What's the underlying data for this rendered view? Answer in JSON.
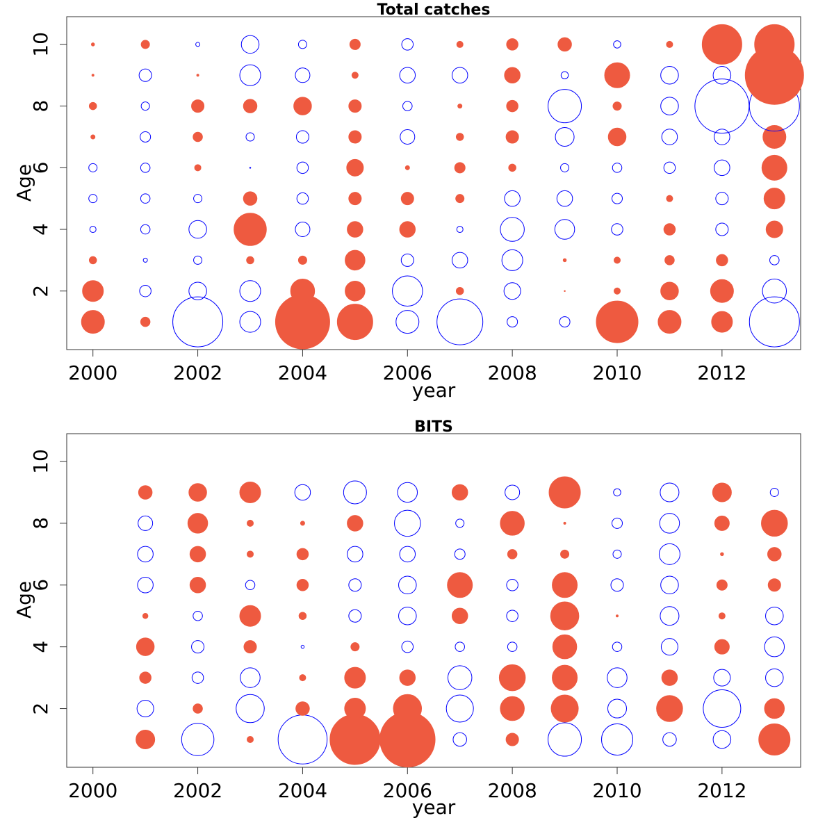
{
  "chart_data": [
    {
      "type": "scatter",
      "subtype": "bubble-residuals",
      "title": "Total catches",
      "xlabel": "year",
      "ylabel": "Age",
      "xlim": [
        1999.5,
        2013.5
      ],
      "ylim": [
        0.1,
        10.9
      ],
      "xticks": [
        2000,
        2002,
        2004,
        2006,
        2008,
        2010,
        2012
      ],
      "yticks": [
        2,
        4,
        6,
        8,
        10
      ],
      "positive_color": "#EE5A40",
      "negative_color": "#0000FF",
      "years": [
        2000,
        2001,
        2002,
        2003,
        2004,
        2005,
        2006,
        2007,
        2008,
        2009,
        2010,
        2011,
        2012,
        2013
      ],
      "ages": [
        1,
        2,
        3,
        4,
        5,
        6,
        7,
        8,
        9,
        10
      ],
      "residuals": [
        [
          1.1,
          1.0,
          0.35,
          -0.3,
          -0.4,
          -0.4,
          0.2,
          0.35,
          0.1,
          0.15
        ],
        [
          0.45,
          -0.55,
          -0.2,
          -0.45,
          -0.45,
          -0.45,
          -0.5,
          -0.4,
          -0.6,
          0.4
        ],
        [
          -2.4,
          -0.85,
          -0.4,
          -0.85,
          -0.4,
          0.3,
          0.45,
          0.6,
          0.1,
          -0.2
        ],
        [
          -1.0,
          -1.0,
          0.35,
          1.55,
          0.65,
          -0.05,
          -0.4,
          0.65,
          -1.0,
          -0.85
        ],
        [
          2.6,
          1.15,
          0.4,
          -0.7,
          -0.55,
          -0.55,
          -0.6,
          0.85,
          -0.7,
          -0.4
        ],
        [
          1.7,
          0.95,
          0.95,
          0.75,
          0.6,
          0.8,
          0.6,
          0.6,
          0.3,
          0.5
        ],
        [
          -1.1,
          -1.45,
          -0.6,
          0.75,
          0.6,
          0.2,
          -0.7,
          -0.45,
          -0.75,
          -0.55
        ],
        [
          -2.2,
          0.35,
          -0.75,
          -0.3,
          0.4,
          0.5,
          0.35,
          0.2,
          -0.75,
          0.3
        ],
        [
          -0.5,
          -0.8,
          -1.0,
          -1.15,
          -0.75,
          0.35,
          0.6,
          0.55,
          0.75,
          0.55
        ],
        [
          -0.5,
          0.05,
          0.15,
          -0.95,
          -0.75,
          -0.4,
          -0.9,
          -1.6,
          -0.35,
          0.65
        ],
        [
          2.0,
          0.3,
          0.3,
          -0.55,
          -0.5,
          -0.45,
          0.85,
          0.4,
          1.2,
          -0.35
        ],
        [
          1.1,
          0.85,
          0.45,
          0.55,
          0.3,
          -0.55,
          -0.75,
          -0.85,
          -0.85,
          0.3
        ],
        [
          1.0,
          1.1,
          0.55,
          -0.6,
          -0.6,
          -0.75,
          -0.75,
          -2.6,
          -0.85,
          1.9
        ],
        [
          -2.4,
          -1.15,
          -0.45,
          0.8,
          1.0,
          1.2,
          1.1,
          -2.4,
          2.8,
          1.9
        ]
      ]
    },
    {
      "type": "scatter",
      "subtype": "bubble-residuals",
      "title": "BITS",
      "xlabel": "year",
      "ylabel": "Age",
      "xlim": [
        1999.5,
        2013.5
      ],
      "ylim": [
        0.1,
        10.9
      ],
      "xticks": [
        2000,
        2002,
        2004,
        2006,
        2008,
        2010,
        2012
      ],
      "yticks": [
        2,
        4,
        6,
        8,
        10
      ],
      "positive_color": "#EE5A40",
      "negative_color": "#0000FF",
      "years": [
        2001,
        2002,
        2003,
        2004,
        2005,
        2006,
        2007,
        2008,
        2009,
        2010,
        2011,
        2012,
        2013
      ],
      "ages": [
        1,
        2,
        3,
        4,
        5,
        6,
        7,
        8,
        9
      ],
      "residuals": [
        [
          0.9,
          -0.8,
          0.55,
          0.85,
          0.25,
          -0.75,
          -0.75,
          -0.7,
          0.65
        ],
        [
          -1.55,
          0.45,
          -0.55,
          -0.6,
          -0.45,
          0.75,
          0.75,
          0.95,
          0.85
        ],
        [
          0.3,
          -1.35,
          -0.95,
          0.6,
          1.0,
          -0.45,
          0.3,
          0.3,
          1.0
        ],
        [
          -2.35,
          0.65,
          0.3,
          -0.15,
          0.35,
          0.55,
          0.55,
          0.2,
          -0.75
        ],
        [
          2.4,
          1.0,
          1.0,
          0.4,
          -0.6,
          -0.6,
          -0.75,
          0.75,
          -1.1
        ],
        [
          2.65,
          1.35,
          0.75,
          -0.55,
          -0.85,
          -0.85,
          -0.75,
          -1.25,
          -0.95
        ],
        [
          -0.65,
          -1.3,
          -1.15,
          -0.45,
          0.75,
          1.2,
          -0.5,
          -0.4,
          0.75
        ],
        [
          0.6,
          1.15,
          1.25,
          -0.45,
          -0.55,
          -0.55,
          0.45,
          1.15,
          -0.7
        ],
        [
          -1.6,
          1.3,
          1.2,
          1.15,
          1.35,
          1.2,
          0.4,
          0.1,
          1.5
        ],
        [
          -1.5,
          -0.9,
          -0.95,
          -0.45,
          0.1,
          -0.6,
          -0.4,
          -0.5,
          -0.35
        ],
        [
          -0.65,
          1.25,
          0.75,
          -0.8,
          -0.9,
          -0.85,
          -1.0,
          -0.95,
          -0.9
        ],
        [
          -0.85,
          -1.8,
          -0.8,
          0.7,
          0.3,
          0.5,
          0.15,
          0.7,
          0.9
        ],
        [
          1.5,
          0.95,
          -0.85,
          -0.95,
          -0.85,
          0.6,
          0.65,
          1.25,
          -0.4
        ]
      ]
    }
  ]
}
